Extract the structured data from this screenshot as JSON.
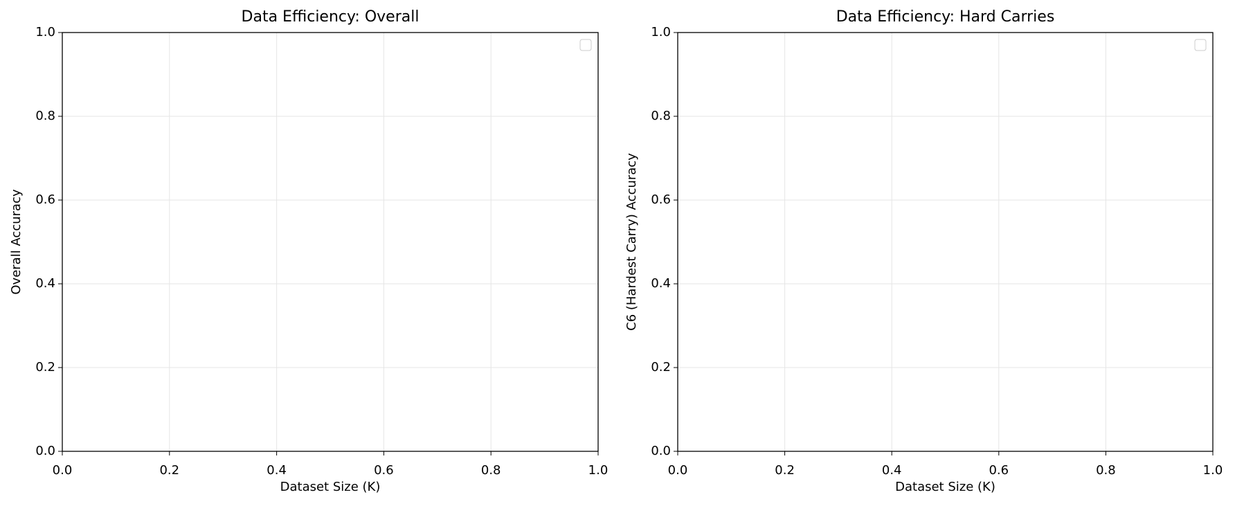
{
  "chart_data": [
    {
      "type": "line",
      "title": "Data Efficiency: Overall",
      "x_label": "Dataset Size (K)",
      "y_label": "Overall Accuracy",
      "series": [],
      "xlim": [
        0,
        1
      ],
      "ylim": [
        0,
        1
      ],
      "xticks": [
        {
          "value": 0,
          "label": "0.0"
        },
        0.2,
        0.4,
        0.6,
        0.8,
        {
          "value": 1,
          "label": "1.0"
        }
      ],
      "yticks": [
        {
          "value": 0,
          "label": "0.0"
        },
        0.2,
        0.4,
        0.6,
        0.8,
        {
          "value": 1,
          "label": "1.0"
        }
      ],
      "grid": true,
      "legend": "upper right"
    },
    {
      "type": "line",
      "title": "Data Efficiency: Hard Carries",
      "x_label": "Dataset Size (K)",
      "y_label": "C6 (Hardest Carry) Accuracy",
      "series": [],
      "xlim": [
        0,
        1
      ],
      "ylim": [
        0,
        1
      ],
      "xticks": [
        {
          "value": 0,
          "label": "0.0"
        },
        0.2,
        0.4,
        0.6,
        0.8,
        {
          "value": 1,
          "label": "1.0"
        }
      ],
      "yticks": [
        {
          "value": 0,
          "label": "0.0"
        },
        0.2,
        0.4,
        0.6,
        0.8,
        {
          "value": 1,
          "label": "1.0"
        }
      ],
      "grid": true,
      "legend": "upper right"
    }
  ]
}
